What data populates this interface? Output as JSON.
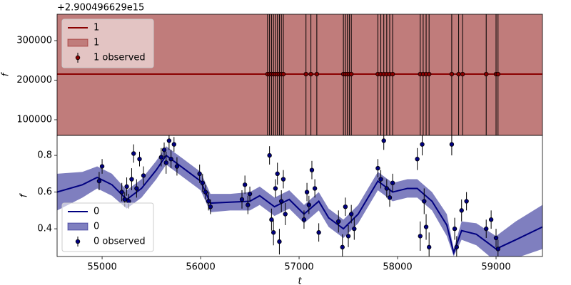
{
  "chart_data": [
    {
      "type": "line",
      "ylabel": "f",
      "offset_label": "+2.900496629e15",
      "xlim": [
        54543,
        59471
      ],
      "ylim": [
        60400,
        366700
      ],
      "yticks": [
        100000,
        200000,
        300000
      ],
      "legend": "upper left",
      "band": {
        "name": "1",
        "color": "#c07c7b",
        "x": [
          54543,
          59471
        ],
        "lower": [
          -200000,
          -200000
        ],
        "upper": [
          600000,
          600000
        ]
      },
      "line": {
        "name": "1",
        "color": "#8b0000",
        "x": [
          54543,
          59471
        ],
        "values": [
          215300,
          215300
        ]
      },
      "observed": {
        "name": "1 observed",
        "color": "#8b0000",
        "x": [
          56680,
          56700,
          56720,
          56740,
          56760,
          56780,
          56800,
          56820,
          56840,
          57070,
          57120,
          57180,
          57450,
          57470,
          57490,
          57510,
          57530,
          57800,
          57830,
          57860,
          57890,
          57920,
          57950,
          58230,
          58260,
          58290,
          58320,
          58550,
          58620,
          58660,
          58900,
          59000,
          59020
        ],
        "values": [
          215300,
          215300,
          215300,
          215300,
          215300,
          215300,
          215300,
          215300,
          215300,
          215300,
          215300,
          215300,
          215300,
          215300,
          215300,
          215300,
          215300,
          215300,
          215300,
          215300,
          215300,
          215300,
          215300,
          215300,
          215300,
          215300,
          215300,
          215300,
          215300,
          215300,
          215300,
          215300,
          215300
        ],
        "errors": [
          400000,
          400000,
          400000,
          400000,
          400000,
          400000,
          400000,
          400000,
          400000,
          400000,
          400000,
          400000,
          400000,
          400000,
          400000,
          400000,
          400000,
          400000,
          400000,
          400000,
          400000,
          400000,
          400000,
          400000,
          400000,
          400000,
          400000,
          400000,
          400000,
          400000,
          400000,
          400000,
          400000
        ]
      }
    },
    {
      "type": "line",
      "ylabel": "f",
      "xlabel": "t",
      "xlim": [
        54543,
        59471
      ],
      "ylim": [
        0.249,
        0.909
      ],
      "xticks": [
        55000,
        56000,
        57000,
        58000,
        59000
      ],
      "yticks": [
        0.4,
        0.6,
        0.8
      ],
      "legend": "lower left",
      "band": {
        "name": "0",
        "color": "#7f7fbf",
        "x": [
          54543,
          54800,
          54950,
          55100,
          55250,
          55400,
          55550,
          55650,
          55800,
          56000,
          56100,
          56300,
          56500,
          56600,
          56750,
          56900,
          57050,
          57200,
          57300,
          57450,
          57600,
          57800,
          57950,
          58100,
          58200,
          58350,
          58500,
          58570,
          58650,
          58800,
          59000,
          59200,
          59471
        ],
        "lower": [
          0.5,
          0.57,
          0.62,
          0.58,
          0.51,
          0.57,
          0.67,
          0.75,
          0.69,
          0.61,
          0.49,
          0.5,
          0.5,
          0.53,
          0.47,
          0.51,
          0.43,
          0.5,
          0.41,
          0.35,
          0.43,
          0.61,
          0.55,
          0.57,
          0.57,
          0.5,
          0.36,
          0.25,
          0.34,
          0.31,
          0.22,
          0.24,
          0.29
        ],
        "upper": [
          0.7,
          0.71,
          0.74,
          0.7,
          0.61,
          0.67,
          0.77,
          0.85,
          0.79,
          0.71,
          0.59,
          0.59,
          0.6,
          0.63,
          0.57,
          0.61,
          0.53,
          0.6,
          0.51,
          0.45,
          0.53,
          0.71,
          0.65,
          0.67,
          0.67,
          0.6,
          0.48,
          0.29,
          0.44,
          0.43,
          0.36,
          0.44,
          0.53
        ]
      },
      "line": {
        "name": "0",
        "color": "#000080",
        "x": [
          54543,
          54800,
          54950,
          55100,
          55250,
          55400,
          55550,
          55650,
          55800,
          56000,
          56100,
          56300,
          56500,
          56600,
          56750,
          56900,
          57050,
          57200,
          57300,
          57450,
          57600,
          57800,
          57950,
          58100,
          58200,
          58350,
          58500,
          58570,
          58650,
          58800,
          59000,
          59200,
          59471
        ],
        "values": [
          0.6,
          0.64,
          0.68,
          0.64,
          0.56,
          0.62,
          0.72,
          0.8,
          0.74,
          0.66,
          0.54,
          0.545,
          0.55,
          0.58,
          0.52,
          0.56,
          0.48,
          0.55,
          0.46,
          0.4,
          0.48,
          0.66,
          0.6,
          0.62,
          0.62,
          0.55,
          0.42,
          0.27,
          0.39,
          0.37,
          0.29,
          0.34,
          0.41
        ]
      },
      "observed": {
        "name": "0 observed",
        "color": "#000080",
        "x": [
          54970,
          55000,
          55200,
          55230,
          55250,
          55270,
          55300,
          55320,
          55350,
          55380,
          55420,
          55600,
          55630,
          55650,
          55680,
          55700,
          55730,
          55760,
          55990,
          56020,
          56050,
          56080,
          56100,
          56420,
          56450,
          56480,
          56500,
          56700,
          56720,
          56740,
          56760,
          56780,
          56800,
          56820,
          56840,
          56860,
          57050,
          57080,
          57100,
          57130,
          57160,
          57200,
          57400,
          57440,
          57470,
          57500,
          57530,
          57560,
          57800,
          57830,
          57860,
          57890,
          57920,
          57950,
          58200,
          58230,
          58250,
          58270,
          58290,
          58320,
          58550,
          58580,
          58600,
          58650,
          58700,
          58900,
          58950,
          59000,
          59020
        ],
        "values": [
          0.66,
          0.74,
          0.6,
          0.56,
          0.63,
          0.55,
          0.67,
          0.81,
          0.62,
          0.78,
          0.69,
          0.79,
          0.83,
          0.76,
          0.88,
          0.78,
          0.86,
          0.74,
          0.7,
          0.65,
          0.6,
          0.55,
          0.52,
          0.56,
          0.64,
          0.53,
          0.59,
          0.8,
          0.45,
          0.38,
          0.62,
          0.7,
          0.33,
          0.55,
          0.67,
          0.48,
          0.45,
          0.6,
          0.53,
          0.72,
          0.62,
          0.38,
          0.44,
          0.3,
          0.52,
          0.36,
          0.48,
          0.4,
          0.73,
          0.67,
          0.88,
          0.62,
          0.57,
          0.65,
          0.78,
          0.36,
          0.86,
          0.55,
          0.41,
          0.3,
          0.86,
          0.4,
          0.3,
          0.5,
          0.55,
          0.4,
          0.45,
          0.35,
          0.29
        ],
        "errors": [
          0.05,
          0.04,
          0.05,
          0.04,
          0.05,
          0.04,
          0.06,
          0.05,
          0.05,
          0.04,
          0.05,
          0.05,
          0.04,
          0.06,
          0.05,
          0.05,
          0.04,
          0.05,
          0.05,
          0.05,
          0.04,
          0.05,
          0.04,
          0.05,
          0.05,
          0.05,
          0.04,
          0.05,
          0.06,
          0.07,
          0.05,
          0.06,
          0.07,
          0.06,
          0.05,
          0.06,
          0.05,
          0.05,
          0.05,
          0.05,
          0.05,
          0.05,
          0.06,
          0.07,
          0.05,
          0.06,
          0.05,
          0.06,
          0.05,
          0.05,
          0.05,
          0.05,
          0.05,
          0.05,
          0.06,
          0.08,
          0.06,
          0.07,
          0.07,
          0.08,
          0.06,
          0.06,
          0.06,
          0.06,
          0.05,
          0.05,
          0.05,
          0.05,
          0.05
        ]
      }
    }
  ]
}
